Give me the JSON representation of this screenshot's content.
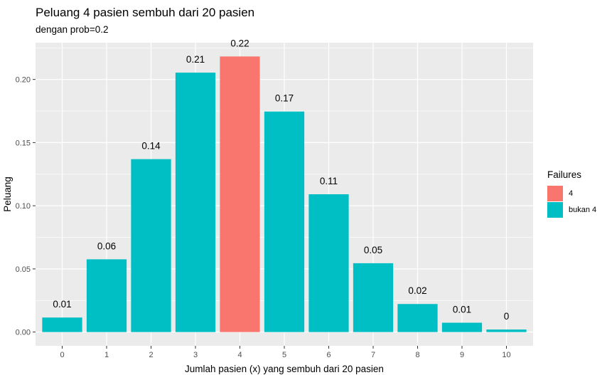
{
  "chart_data": {
    "type": "bar",
    "title": "Peluang 4 pasien sembuh dari 20 pasien",
    "subtitle": "dengan prob=0.2",
    "xlabel": "Jumlah pasien (x) yang sembuh dari 20 pasien",
    "ylabel": "Peluang",
    "categories": [
      "0",
      "1",
      "2",
      "3",
      "4",
      "5",
      "6",
      "7",
      "8",
      "9",
      "10"
    ],
    "values": [
      0.0115,
      0.0576,
      0.1369,
      0.2054,
      0.2182,
      0.1746,
      0.1091,
      0.0545,
      0.0222,
      0.0074,
      0.002
    ],
    "data_labels": [
      "0.01",
      "0.06",
      "0.14",
      "0.21",
      "0.22",
      "0.17",
      "0.11",
      "0.05",
      "0.02",
      "0.01",
      "0"
    ],
    "fill_group": [
      "bukan 4",
      "bukan 4",
      "bukan 4",
      "bukan 4",
      "4",
      "bukan 4",
      "bukan 4",
      "bukan 4",
      "bukan 4",
      "bukan 4",
      "bukan 4"
    ],
    "ylim": [
      -0.0109,
      0.2291
    ],
    "yticks": [
      0.0,
      0.05,
      0.1,
      0.15,
      0.2
    ],
    "ytick_labels": [
      "0.00",
      "0.05",
      "0.10",
      "0.15",
      "0.20"
    ],
    "grid": true,
    "legend": {
      "title": "Failures",
      "position": "right",
      "items": [
        {
          "label": "4",
          "color": "#F8766D"
        },
        {
          "label": "bukan 4",
          "color": "#00BFC4"
        }
      ]
    },
    "colors": {
      "panel": "#EBEBEB",
      "grid": "#FFFFFF",
      "highlight": "#F8766D",
      "base": "#00BFC4"
    }
  }
}
